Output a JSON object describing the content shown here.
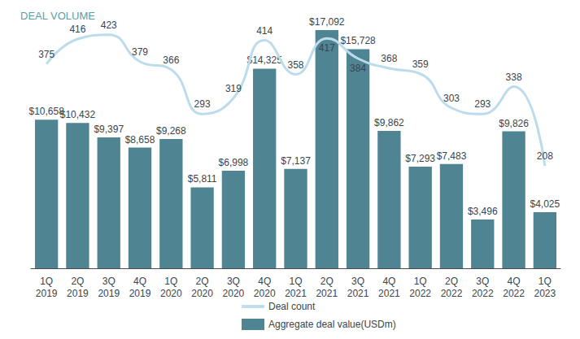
{
  "chart_data": {
    "type": "bar",
    "title": "DEAL VOLUME",
    "categories": [
      "1Q\n2019",
      "2Q\n2019",
      "3Q\n2019",
      "4Q\n2019",
      "1Q\n2020",
      "2Q\n2020",
      "3Q\n2020",
      "4Q\n2020",
      "1Q\n2021",
      "2Q\n2021",
      "3Q\n2021",
      "4Q\n2021",
      "1Q\n2022",
      "2Q\n2022",
      "3Q\n2022",
      "4Q\n2022",
      "1Q\n2023"
    ],
    "series": [
      {
        "name": "Deal count",
        "type": "line",
        "axis": "y2",
        "color": "#bcdcec",
        "marker": "none",
        "values": [
          375,
          416,
          423,
          379,
          366,
          293,
          319,
          414,
          358,
          417,
          384,
          368,
          359,
          303,
          293,
          338,
          208
        ]
      },
      {
        "name": "Aggregate deal value(USDm)",
        "type": "bar",
        "color": "#4f8593",
        "values": [
          10658,
          10432,
          9397,
          8658,
          9268,
          5811,
          6998,
          14325,
          7137,
          17092,
          15728,
          9862,
          7293,
          7483,
          3496,
          9826,
          4025
        ],
        "value_labels": [
          "$10,658",
          "$10,432",
          "$9,397",
          "$8,658",
          "$9,268",
          "$5,811",
          "$6,998",
          "$14,325",
          "$7,137",
          "$17,092",
          "$15,728",
          "$9,862",
          "$7,293",
          "$7,483",
          "$3,496",
          "$9,826",
          "$4,025"
        ]
      }
    ],
    "ylim": [
      0,
      17500
    ],
    "yticks": [],
    "y2lim": [
      40,
      440
    ],
    "y2ticks": [],
    "tick_labels": "x",
    "grid": false,
    "legend": "bottom",
    "data_labels": true
  }
}
